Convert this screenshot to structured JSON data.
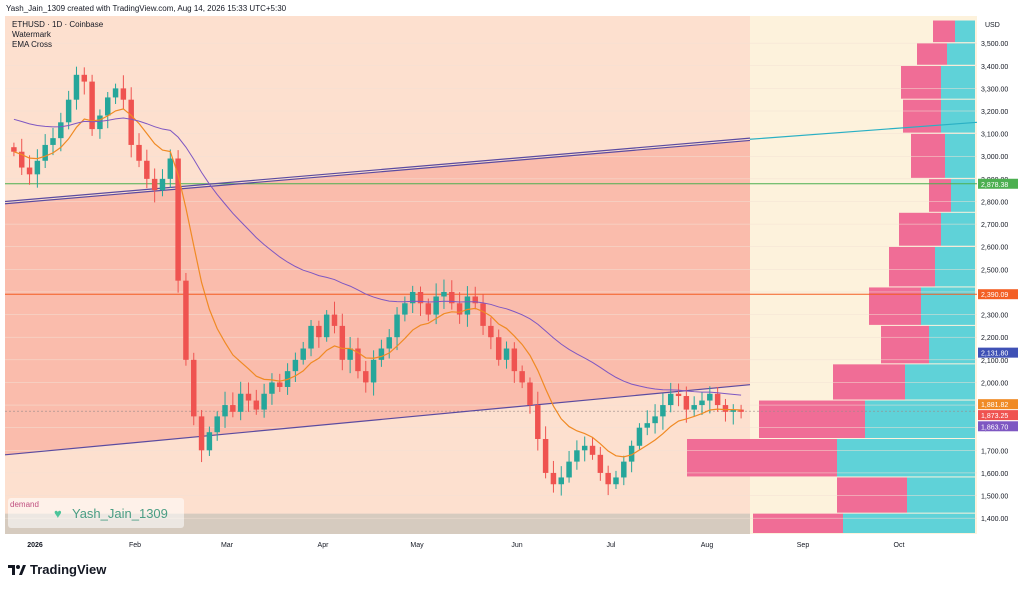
{
  "caption": "Yash_Jain_1309 created with TradingView.com, Aug 14, 2026 15:33 UTC+5:30",
  "legend": {
    "symbol": "ETHUSD · 1D · Coinbase",
    "line2": "Watermark",
    "line3": "EMA Cross"
  },
  "watermark": {
    "demand_label": "demand",
    "text": "Yash_Jain_1309"
  },
  "brand": {
    "name": "TradingView"
  },
  "colors": {
    "up": "#26a69a",
    "down": "#ef5350",
    "ema_fast": "#f08a24",
    "ema_slow": "#7e57c2",
    "zone": "#f8b0a0",
    "hlevel": "#f35f24",
    "trend": "#5b4ba0"
  },
  "chart_data": {
    "type": "candlestick",
    "title": "ETHUSD · 1D · Coinbase",
    "currency": "USD",
    "x_ticks": [
      "2026",
      "Feb",
      "Mar",
      "Apr",
      "May",
      "Jun",
      "Jul",
      "Aug",
      "Sep",
      "Oct"
    ],
    "y_ticks": [
      1400,
      1500,
      1600,
      1700,
      1800,
      1900,
      2000,
      2100,
      2200,
      2300,
      2400,
      2500,
      2600,
      2700,
      2800,
      2900,
      3000,
      3100,
      3200,
      3300,
      3400,
      3500
    ],
    "ylim": [
      1330,
      3620
    ],
    "price_labels": [
      {
        "value": "2,878.38",
        "price": 2878.38,
        "color": "#4caf50"
      },
      {
        "value": "2,390.09",
        "price": 2390.09,
        "color": "#f35f24"
      },
      {
        "value": "2,131.80",
        "price": 2131.8,
        "color": "#3f51b5"
      },
      {
        "value": "1,881.82",
        "price": 1881.82,
        "color": "#f08a24"
      },
      {
        "value": "1,873.25",
        "price": 1873.25,
        "color": "#ef5350"
      },
      {
        "value": "1,863.70",
        "price": 1863.7,
        "color": "#7e57c2"
      }
    ],
    "horizontal_levels": [
      {
        "price": 2878.38,
        "color": "#4caf50"
      },
      {
        "price": 2390.09,
        "color": "#f35f24"
      }
    ],
    "series": [
      {
        "name": "close",
        "values": [
          3020,
          2950,
          2920,
          2980,
          3050,
          3080,
          3150,
          3250,
          3360,
          3330,
          3120,
          3180,
          3260,
          3300,
          3250,
          3050,
          2980,
          2900,
          2850,
          2900,
          2990,
          2450,
          2100,
          1850,
          1700,
          1780,
          1850,
          1900,
          1870,
          1950,
          1920,
          1880,
          1950,
          2000,
          1980,
          2050,
          2100,
          2150,
          2250,
          2200,
          2300,
          2250,
          2100,
          2150,
          2050,
          2000,
          2100,
          2150,
          2200,
          2300,
          2350,
          2400,
          2350,
          2300,
          2380,
          2400,
          2350,
          2300,
          2380,
          2350,
          2250,
          2200,
          2100,
          2150,
          2050,
          2000,
          1900,
          1750,
          1600,
          1550,
          1580,
          1650,
          1700,
          1720,
          1680,
          1600,
          1550,
          1580,
          1650,
          1720,
          1800,
          1820,
          1850,
          1900,
          1950,
          1940,
          1880,
          1900,
          1920,
          1950,
          1900,
          1870,
          1880,
          1870
        ]
      }
    ],
    "volume_profile": [
      {
        "price_low": 3500,
        "price_high": 3600,
        "sell": 22,
        "buy": 20
      },
      {
        "price_low": 3400,
        "price_high": 3500,
        "sell": 30,
        "buy": 28
      },
      {
        "price_low": 3250,
        "price_high": 3400,
        "sell": 40,
        "buy": 34
      },
      {
        "price_low": 3100,
        "price_high": 3250,
        "sell": 38,
        "buy": 34
      },
      {
        "price_low": 2900,
        "price_high": 3100,
        "sell": 34,
        "buy": 30
      },
      {
        "price_low": 2750,
        "price_high": 2900,
        "sell": 22,
        "buy": 24
      },
      {
        "price_low": 2600,
        "price_high": 2750,
        "sell": 42,
        "buy": 34
      },
      {
        "price_low": 2420,
        "price_high": 2600,
        "sell": 46,
        "buy": 40
      },
      {
        "price_low": 2250,
        "price_high": 2420,
        "sell": 52,
        "buy": 54
      },
      {
        "price_low": 2080,
        "price_high": 2250,
        "sell": 48,
        "buy": 46
      },
      {
        "price_low": 1920,
        "price_high": 2080,
        "sell": 72,
        "buy": 70
      },
      {
        "price_low": 1750,
        "price_high": 1920,
        "sell": 106,
        "buy": 110
      },
      {
        "price_low": 1580,
        "price_high": 1750,
        "sell": 150,
        "buy": 138
      },
      {
        "price_low": 1420,
        "price_high": 1580,
        "sell": 70,
        "buy": 68
      },
      {
        "price_low": 1330,
        "price_high": 1420,
        "sell": 90,
        "buy": 132
      }
    ]
  }
}
